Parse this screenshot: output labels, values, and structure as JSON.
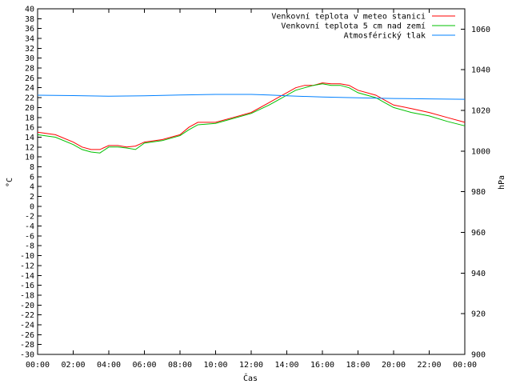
{
  "chart_data": {
    "type": "line",
    "xlabel": "Čas",
    "ylabel": "°C",
    "y2label": "hPa",
    "xlim": [
      0,
      24
    ],
    "ylim": [
      -30,
      40
    ],
    "y2lim": [
      900,
      1070
    ],
    "x_ticks": [
      "00:00",
      "02:00",
      "04:00",
      "06:00",
      "08:00",
      "10:00",
      "12:00",
      "14:00",
      "16:00",
      "18:00",
      "20:00",
      "22:00",
      "00:00"
    ],
    "y_ticks": [
      40,
      38,
      36,
      34,
      32,
      30,
      28,
      26,
      24,
      22,
      20,
      18,
      16,
      14,
      12,
      10,
      8,
      6,
      4,
      2,
      0,
      -2,
      -4,
      -6,
      -8,
      -10,
      -12,
      -14,
      -16,
      -18,
      -20,
      -22,
      -24,
      -26,
      -28,
      -30
    ],
    "y2_ticks": [
      1060,
      1040,
      1020,
      1000,
      980,
      960,
      940,
      920,
      900
    ],
    "legend_position": "top-right",
    "grid": false,
    "series": [
      {
        "name": "Venkovní teplota v meteo stanici",
        "color": "#ff0000",
        "axis": "left",
        "x": [
          0,
          1,
          2,
          2.5,
          3,
          3.5,
          4,
          4.5,
          5,
          5.5,
          6,
          7,
          8,
          8.5,
          9,
          10,
          11,
          12,
          13,
          13.5,
          14,
          14.5,
          15,
          15.5,
          16,
          16.5,
          17,
          17.5,
          18,
          19,
          19.5,
          20,
          21,
          22,
          23,
          24
        ],
        "y": [
          15,
          14.5,
          13,
          12,
          11.5,
          11.5,
          12.3,
          12.3,
          12,
          12.2,
          13,
          13.5,
          14.5,
          16,
          17,
          17,
          18,
          19,
          21,
          22,
          23,
          24,
          24.5,
          24.5,
          25,
          24.8,
          24.8,
          24.5,
          23.5,
          22.5,
          21.5,
          20.5,
          19.8,
          19,
          18,
          17
        ]
      },
      {
        "name": "Venkovní teplota 5 cm nad zemí",
        "color": "#00c000",
        "axis": "left",
        "x": [
          0,
          1,
          2,
          2.5,
          3,
          3.5,
          4,
          4.5,
          5,
          5.5,
          6,
          7,
          8,
          8.5,
          9,
          10,
          11,
          12,
          13,
          13.5,
          14,
          14.5,
          15,
          15.5,
          16,
          16.5,
          17,
          17.5,
          18,
          19,
          19.5,
          20,
          21,
          22,
          23,
          24
        ],
        "y": [
          14.5,
          14,
          12.5,
          11.5,
          11,
          10.8,
          12,
          12,
          11.8,
          11.5,
          12.8,
          13.3,
          14.3,
          15.5,
          16.5,
          16.8,
          17.8,
          18.8,
          20.5,
          21.5,
          22.5,
          23.5,
          24,
          24.5,
          24.8,
          24.5,
          24.5,
          24,
          23,
          22,
          21,
          20,
          19,
          18.3,
          17.2,
          16.3
        ]
      },
      {
        "name": "Atmosférický tlak",
        "color": "#0080ff",
        "axis": "right",
        "x": [
          0,
          2,
          4,
          6,
          8,
          10,
          12,
          13,
          14,
          16,
          18,
          20,
          22,
          24
        ],
        "y": [
          1027.5,
          1027.3,
          1027,
          1027.2,
          1027.6,
          1027.9,
          1027.9,
          1027.6,
          1027.2,
          1026.6,
          1026.2,
          1025.9,
          1025.7,
          1025.5
        ]
      }
    ]
  }
}
